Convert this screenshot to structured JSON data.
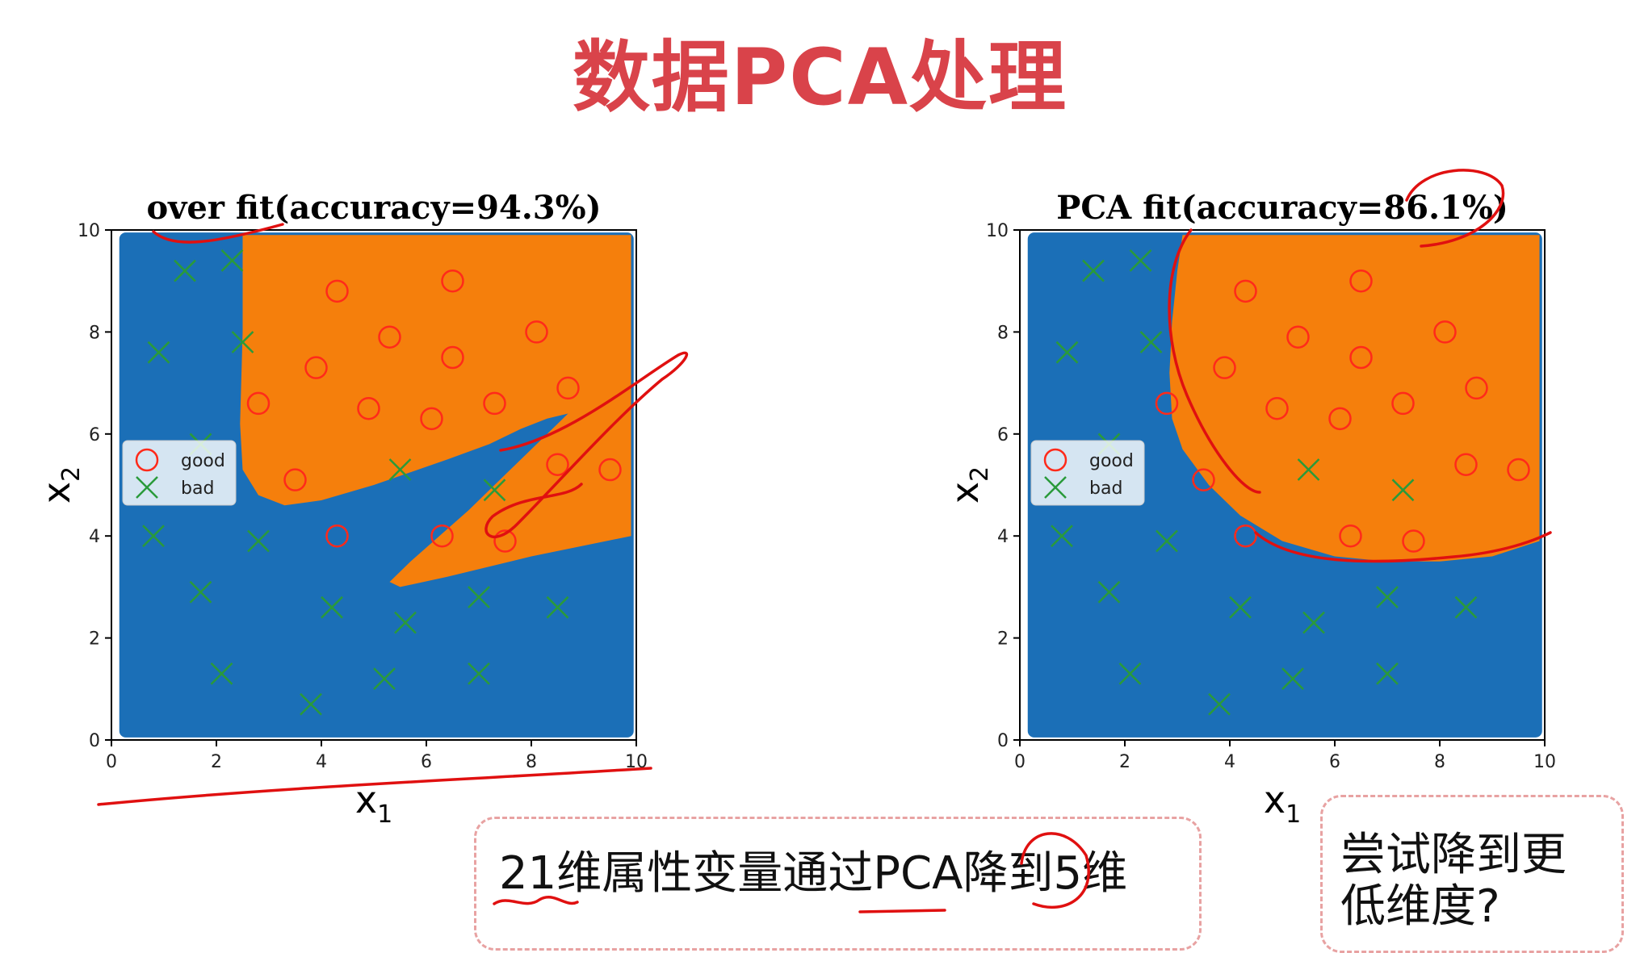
{
  "slide": {
    "title": "数据PCA处理",
    "note_main": "21维属性变量通过PCA降到5维",
    "note_side": "尝试降到更低维度?"
  },
  "colors": {
    "class_good_region": "#f57f0c",
    "class_bad_region": "#1b6fb7",
    "good_marker": "#ff2a1a",
    "bad_marker": "#2a9a3a",
    "annotation_ink": "#e01010",
    "title": "#d9434a"
  },
  "chart_data": [
    {
      "type": "scatter",
      "title": "over fit(accuracy=94.3%)",
      "xlabel": "x1",
      "ylabel": "x2",
      "xlim": [
        0,
        10
      ],
      "ylim": [
        0,
        10
      ],
      "xticks": [
        0,
        2,
        4,
        6,
        8,
        10
      ],
      "yticks": [
        0,
        2,
        4,
        6,
        8,
        10
      ],
      "legend": {
        "placement": "center-left",
        "entries": [
          "good",
          "bad"
        ]
      },
      "background": "decision regions: orange = good, blue = bad",
      "series": [
        {
          "name": "good",
          "marker": "circle",
          "points": [
            [
              4.3,
              8.8
            ],
            [
              6.5,
              9.0
            ],
            [
              5.3,
              7.9
            ],
            [
              8.1,
              8.0
            ],
            [
              3.9,
              7.3
            ],
            [
              6.5,
              7.5
            ],
            [
              2.8,
              6.6
            ],
            [
              4.9,
              6.5
            ],
            [
              6.1,
              6.3
            ],
            [
              7.3,
              6.6
            ],
            [
              8.7,
              6.9
            ],
            [
              3.5,
              5.1
            ],
            [
              8.5,
              5.4
            ],
            [
              9.5,
              5.3
            ],
            [
              4.3,
              4.0
            ],
            [
              6.3,
              4.0
            ],
            [
              7.5,
              3.9
            ]
          ]
        },
        {
          "name": "bad",
          "marker": "x",
          "points": [
            [
              1.4,
              9.2
            ],
            [
              2.3,
              9.4
            ],
            [
              0.9,
              7.6
            ],
            [
              2.5,
              7.8
            ],
            [
              1.7,
              5.8
            ],
            [
              5.5,
              5.3
            ],
            [
              7.3,
              4.9
            ],
            [
              0.8,
              4.0
            ],
            [
              2.8,
              3.9
            ],
            [
              1.7,
              2.9
            ],
            [
              4.2,
              2.6
            ],
            [
              5.6,
              2.3
            ],
            [
              7.0,
              2.8
            ],
            [
              8.5,
              2.6
            ],
            [
              2.1,
              1.3
            ],
            [
              5.2,
              1.2
            ],
            [
              7.0,
              1.3
            ],
            [
              3.8,
              0.7
            ]
          ]
        }
      ]
    },
    {
      "type": "scatter",
      "title": "PCA fit(accuracy=86.1%)",
      "xlabel": "x1",
      "ylabel": "x2",
      "xlim": [
        0,
        10
      ],
      "ylim": [
        0,
        10
      ],
      "xticks": [
        0,
        2,
        4,
        6,
        8,
        10
      ],
      "yticks": [
        0,
        2,
        4,
        6,
        8,
        10
      ],
      "legend": {
        "placement": "center-left",
        "entries": [
          "good",
          "bad"
        ]
      },
      "background": "decision regions: orange = good, blue = bad",
      "series": [
        {
          "name": "good",
          "marker": "circle",
          "points": [
            [
              4.3,
              8.8
            ],
            [
              6.5,
              9.0
            ],
            [
              5.3,
              7.9
            ],
            [
              8.1,
              8.0
            ],
            [
              3.9,
              7.3
            ],
            [
              6.5,
              7.5
            ],
            [
              2.8,
              6.6
            ],
            [
              4.9,
              6.5
            ],
            [
              6.1,
              6.3
            ],
            [
              7.3,
              6.6
            ],
            [
              8.7,
              6.9
            ],
            [
              3.5,
              5.1
            ],
            [
              8.5,
              5.4
            ],
            [
              9.5,
              5.3
            ],
            [
              4.3,
              4.0
            ],
            [
              6.3,
              4.0
            ],
            [
              7.5,
              3.9
            ]
          ]
        },
        {
          "name": "bad",
          "marker": "x",
          "points": [
            [
              1.4,
              9.2
            ],
            [
              2.3,
              9.4
            ],
            [
              0.9,
              7.6
            ],
            [
              2.5,
              7.8
            ],
            [
              1.7,
              5.8
            ],
            [
              5.5,
              5.3
            ],
            [
              7.3,
              4.9
            ],
            [
              0.8,
              4.0
            ],
            [
              2.8,
              3.9
            ],
            [
              1.7,
              2.9
            ],
            [
              4.2,
              2.6
            ],
            [
              5.6,
              2.3
            ],
            [
              7.0,
              2.8
            ],
            [
              8.5,
              2.6
            ],
            [
              2.1,
              1.3
            ],
            [
              5.2,
              1.2
            ],
            [
              7.0,
              1.3
            ],
            [
              3.8,
              0.7
            ]
          ]
        }
      ]
    }
  ]
}
